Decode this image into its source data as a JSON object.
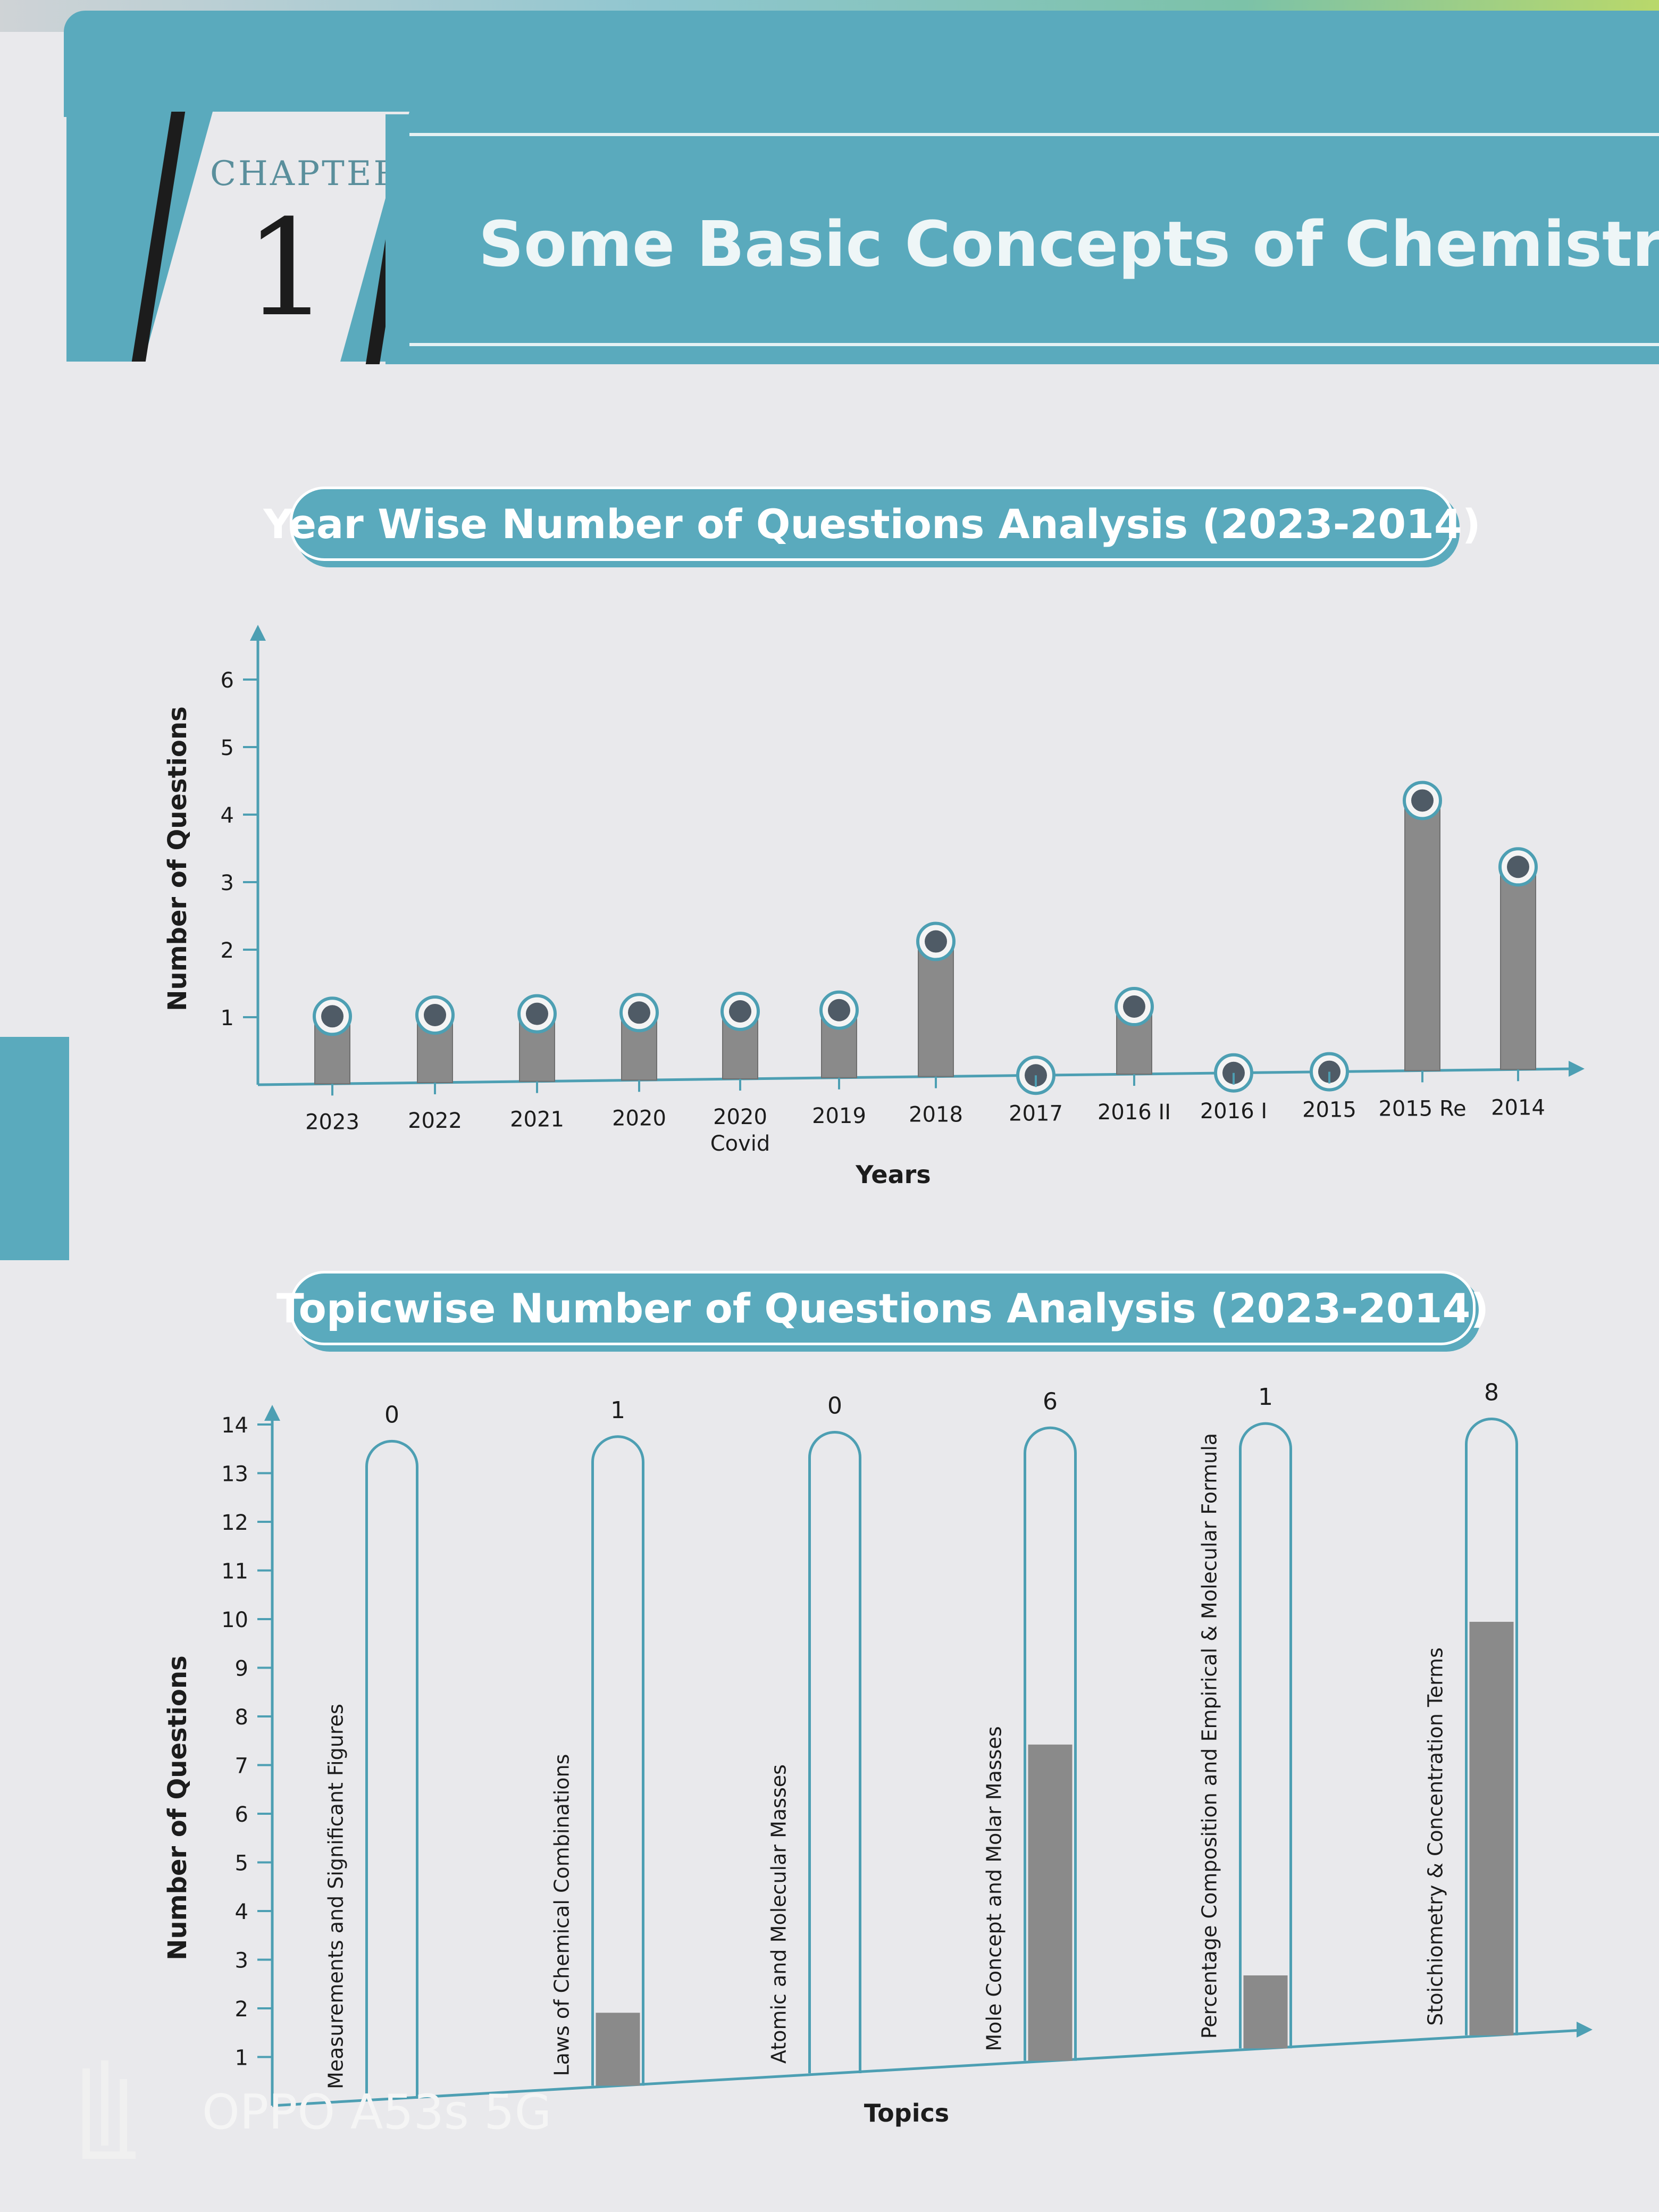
{
  "header": {
    "chapter_label": "CHAPTER",
    "chapter_number": "1",
    "chapter_title": "Some Basic Concepts of Chemistry"
  },
  "colors": {
    "accent": "#5aaabd",
    "bar_fill": "#8a8a8a",
    "outline": "#4d9fb3",
    "marker": "#4f5b66"
  },
  "chart_data": [
    {
      "type": "bar",
      "title": "Year Wise Number of Questions Analysis (2023-2014)",
      "xlabel": "Years",
      "ylabel": "Number of Questions",
      "categories": [
        "2023",
        "2022",
        "2021",
        "2020",
        "2020 Covid",
        "2019",
        "2018",
        "2017",
        "2016 II",
        "2016 I",
        "2015",
        "2015 Re",
        "2014"
      ],
      "values": [
        1,
        1,
        1,
        1,
        1,
        1,
        2,
        0,
        1,
        0,
        0,
        4,
        3
      ],
      "yticks": [
        "1",
        "2",
        "3",
        "4",
        "5",
        "6"
      ],
      "ylim": [
        0,
        6
      ]
    },
    {
      "type": "bar",
      "title": "Topicwise Number of Questions Analysis (2023-2014)",
      "xlabel": "Topics",
      "ylabel": "Number of Questions",
      "categories": [
        "Measurements and Significant Figures",
        "Laws of Chemical Combinations",
        "Atomic and Molecular Masses",
        "Mole Concept and Molar Masses",
        "Percentage Composition and Empirical & Molecular Formula",
        "Stoichiometry & Concentration Terms"
      ],
      "values": [
        0,
        1,
        0,
        6,
        1,
        8
      ],
      "data_labels": [
        "0",
        "1",
        "0",
        "6",
        "1",
        "8"
      ],
      "yticks": [
        "1",
        "2",
        "3",
        "4",
        "5",
        "6",
        "7",
        "8",
        "9",
        "10",
        "11",
        "12",
        "13",
        "14"
      ],
      "ylim": [
        0,
        14
      ]
    }
  ],
  "watermark": {
    "text": "OPPO A53s 5G"
  }
}
